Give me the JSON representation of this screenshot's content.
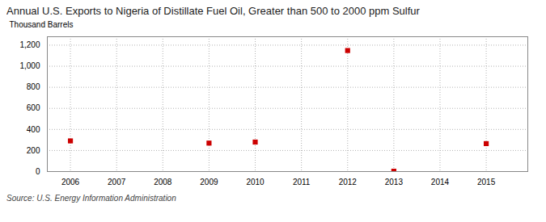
{
  "chart_data": {
    "type": "scatter",
    "title": "Annual U.S. Exports to Nigeria of Distillate Fuel Oil, Greater than 500 to 2000 ppm Sulfur",
    "ylabel": "Thousand Barrels",
    "source": "Source: U.S. Energy Information Administration",
    "x": [
      2006,
      2009,
      2010,
      2012,
      2013,
      2015
    ],
    "values": [
      291,
      270,
      280,
      1149,
      3,
      265
    ],
    "color": "#cc0000",
    "marker": "square",
    "xlim": [
      2005.5,
      2015.9
    ],
    "ylim": [
      0,
      1280
    ],
    "xticks": [
      2006,
      2007,
      2008,
      2009,
      2010,
      2011,
      2012,
      2013,
      2014,
      2015
    ],
    "yticks": [
      0,
      200,
      400,
      600,
      800,
      {
        "value": 1000,
        "label": "1,000"
      },
      {
        "value": 1200,
        "label": "1,200"
      }
    ],
    "grid": true
  }
}
